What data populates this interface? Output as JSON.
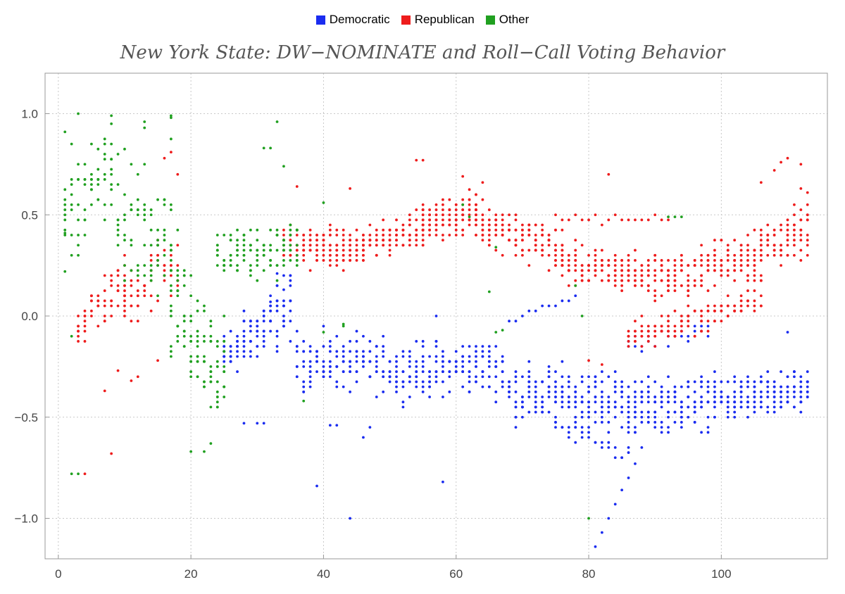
{
  "chart_data": {
    "type": "scatter",
    "title": "New York State: DW−NOMINATE and Roll−Call Voting Behavior",
    "xlabel": "",
    "ylabel": "",
    "xlim": [
      -2,
      116
    ],
    "ylim": [
      -1.2,
      1.2
    ],
    "x_ticks": [
      0,
      20,
      40,
      60,
      80,
      100
    ],
    "x_tick_labels": [
      "0",
      "20",
      "40",
      "60",
      "80",
      "100"
    ],
    "y_ticks": [
      1.0,
      0.5,
      0.0,
      -0.5,
      -1.0
    ],
    "y_tick_labels": [
      "1.0",
      "0.5",
      "0.0",
      "−0.5",
      "−1.0"
    ],
    "grid": true,
    "legend_position": "top",
    "series": [
      {
        "name": "Democratic",
        "color": "#1a2cf0",
        "bands": [
          {
            "x": [
              25,
              35
            ],
            "center": [
              -0.2,
              0.05
            ],
            "spread": [
              0.12,
              0.16
            ],
            "per_x": 10
          },
          {
            "x": [
              36,
              50
            ],
            "center": [
              -0.22,
              -0.25
            ],
            "spread": [
              0.12,
              0.12
            ],
            "per_x": 9
          },
          {
            "x": [
              51,
              67
            ],
            "center": [
              -0.27,
              -0.25
            ],
            "spread": [
              0.12,
              0.12
            ],
            "per_x": 9
          },
          {
            "x": [
              68,
              85
            ],
            "center": [
              -0.38,
              -0.42
            ],
            "spread": [
              0.13,
              0.14
            ],
            "per_x": 10
          },
          {
            "x": [
              86,
              113
            ],
            "center": [
              -0.45,
              -0.38
            ],
            "spread": [
              0.12,
              0.1
            ],
            "per_x": 11
          },
          {
            "x": [
              68,
              78
            ],
            "center": [
              -0.02,
              0.1
            ],
            "spread": [
              0.02,
              0.02
            ],
            "per_x": 1
          },
          {
            "x": [
              86,
              98
            ],
            "center": [
              -0.15,
              -0.08
            ],
            "spread": [
              0.04,
              0.04
            ],
            "per_x": 2
          },
          {
            "x": [
              75,
              86
            ],
            "center": [
              -0.55,
              -0.68
            ],
            "spread": [
              0.04,
              0.04
            ],
            "per_x": 2
          }
        ],
        "points": [
          [
            39,
            -0.84
          ],
          [
            44,
            -1.0
          ],
          [
            58,
            -0.82
          ],
          [
            81,
            -1.14
          ],
          [
            82,
            -1.07
          ],
          [
            83,
            -1.0
          ],
          [
            84,
            -0.93
          ],
          [
            85,
            -0.86
          ],
          [
            86,
            -0.8
          ],
          [
            87,
            -0.73
          ],
          [
            88,
            -0.65
          ],
          [
            57,
            0.0
          ],
          [
            30,
            -0.53
          ],
          [
            31,
            -0.53
          ],
          [
            28,
            -0.53
          ],
          [
            32,
            0.07
          ],
          [
            33,
            0.21
          ],
          [
            34,
            0.13
          ],
          [
            110,
            -0.08
          ],
          [
            41,
            -0.54
          ],
          [
            42,
            -0.54
          ],
          [
            47,
            -0.55
          ],
          [
            46,
            -0.6
          ]
        ]
      },
      {
        "name": "Republican",
        "color": "#ee1c1c",
        "bands": [
          {
            "x": [
              3,
              10
            ],
            "center": [
              -0.03,
              0.15
            ],
            "spread": [
              0.12,
              0.13
            ],
            "per_x": 7
          },
          {
            "x": [
              10,
              18
            ],
            "center": [
              0.1,
              0.28
            ],
            "spread": [
              0.16,
              0.18
            ],
            "per_x": 7
          },
          {
            "x": [
              34,
              46
            ],
            "center": [
              0.35,
              0.33
            ],
            "spread": [
              0.08,
              0.09
            ],
            "per_x": 11
          },
          {
            "x": [
              46,
              55
            ],
            "center": [
              0.35,
              0.45
            ],
            "spread": [
              0.07,
              0.08
            ],
            "per_x": 10
          },
          {
            "x": [
              55,
              63
            ],
            "center": [
              0.45,
              0.52
            ],
            "spread": [
              0.08,
              0.09
            ],
            "per_x": 11
          },
          {
            "x": [
              63,
              76
            ],
            "center": [
              0.48,
              0.32
            ],
            "spread": [
              0.1,
              0.1
            ],
            "per_x": 11
          },
          {
            "x": [
              76,
              92
            ],
            "center": [
              0.25,
              0.2
            ],
            "spread": [
              0.09,
              0.09
            ],
            "per_x": 10
          },
          {
            "x": [
              92,
              113
            ],
            "center": [
              0.18,
              0.42
            ],
            "spread": [
              0.1,
              0.11
            ],
            "per_x": 9
          },
          {
            "x": [
              86,
              106
            ],
            "center": [
              -0.12,
              0.1
            ],
            "spread": [
              0.07,
              0.09
            ],
            "per_x": 6
          },
          {
            "x": [
              75,
              92
            ],
            "center": [
              0.48,
              0.48
            ],
            "spread": [
              0.02,
              0.02
            ],
            "per_x": 1
          }
        ],
        "points": [
          [
            4,
            -0.78
          ],
          [
            8,
            -0.68
          ],
          [
            36,
            0.64
          ],
          [
            44,
            0.63
          ],
          [
            54,
            0.77
          ],
          [
            55,
            0.77
          ],
          [
            61,
            0.69
          ],
          [
            64,
            0.66
          ],
          [
            83,
            0.7
          ],
          [
            98,
            0.25
          ],
          [
            106,
            0.66
          ],
          [
            108,
            0.72
          ],
          [
            109,
            0.76
          ],
          [
            110,
            0.78
          ],
          [
            112,
            0.75
          ],
          [
            112,
            0.63
          ],
          [
            113,
            0.61
          ],
          [
            17,
            0.81
          ],
          [
            16,
            0.78
          ],
          [
            12,
            -0.3
          ],
          [
            11,
            -0.32
          ],
          [
            7,
            -0.37
          ],
          [
            15,
            -0.22
          ],
          [
            18,
            0.7
          ],
          [
            9,
            -0.27
          ],
          [
            80,
            -0.22
          ],
          [
            82,
            -0.24
          ]
        ]
      },
      {
        "name": "Other",
        "color": "#20a020",
        "bands": [
          {
            "x": [
              1,
              8
            ],
            "center": [
              0.55,
              0.7
            ],
            "spread": [
              0.25,
              0.2
            ],
            "per_x": 8
          },
          {
            "x": [
              9,
              17
            ],
            "center": [
              0.45,
              0.5
            ],
            "spread": [
              0.3,
              0.3
            ],
            "per_x": 8
          },
          {
            "x": [
              17,
              25
            ],
            "center": [
              0.1,
              -0.3
            ],
            "spread": [
              0.28,
              0.22
            ],
            "per_x": 12
          },
          {
            "x": [
              24,
              36
            ],
            "center": [
              0.3,
              0.35
            ],
            "spread": [
              0.12,
              0.12
            ],
            "per_x": 9
          }
        ],
        "points": [
          [
            1,
            0.91
          ],
          [
            1,
            0.41
          ],
          [
            1,
            0.22
          ],
          [
            2,
            -0.78
          ],
          [
            3,
            -0.78
          ],
          [
            2,
            -0.1
          ],
          [
            3,
            1.0
          ],
          [
            8,
            0.99
          ],
          [
            8,
            0.95
          ],
          [
            13,
            0.96
          ],
          [
            13,
            0.93
          ],
          [
            17,
            0.99
          ],
          [
            17,
            0.98
          ],
          [
            33,
            0.96
          ],
          [
            31,
            0.83
          ],
          [
            32,
            0.83
          ],
          [
            20,
            -0.67
          ],
          [
            22,
            -0.67
          ],
          [
            23,
            -0.63
          ],
          [
            34,
            0.74
          ],
          [
            40,
            0.56
          ],
          [
            40,
            -0.08
          ],
          [
            43,
            -0.05
          ],
          [
            61,
            0.55
          ],
          [
            62,
            0.49
          ],
          [
            66,
            0.34
          ],
          [
            65,
            0.12
          ],
          [
            66,
            -0.08
          ],
          [
            67,
            -0.07
          ],
          [
            78,
            0.15
          ],
          [
            79,
            0.0
          ],
          [
            80,
            -1.0
          ],
          [
            92,
            0.49
          ],
          [
            93,
            0.49
          ],
          [
            94,
            0.49
          ],
          [
            37,
            -0.42
          ],
          [
            43,
            -0.04
          ]
        ]
      }
    ]
  }
}
